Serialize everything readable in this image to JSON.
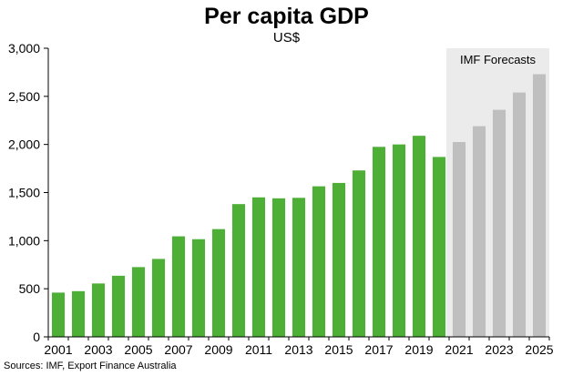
{
  "chart_data": {
    "type": "bar",
    "title": "Per capita GDP",
    "subtitle": "US$",
    "source": "Sources: IMF, Export Finance Australia",
    "forecast_label": "IMF Forecasts",
    "forecast_start": "2021",
    "categories": [
      "2001",
      "2002",
      "2003",
      "2004",
      "2005",
      "2006",
      "2007",
      "2008",
      "2009",
      "2010",
      "2011",
      "2012",
      "2013",
      "2014",
      "2015",
      "2016",
      "2017",
      "2018",
      "2019",
      "2020",
      "2021",
      "2022",
      "2023",
      "2024",
      "2025"
    ],
    "values": [
      460,
      475,
      555,
      635,
      725,
      810,
      1045,
      1015,
      1120,
      1380,
      1450,
      1440,
      1445,
      1565,
      1600,
      1730,
      1975,
      2000,
      2090,
      1870,
      2025,
      2190,
      2360,
      2540,
      2730
    ],
    "x_tick_labels": [
      "2001",
      "2003",
      "2005",
      "2007",
      "2009",
      "2011",
      "2013",
      "2015",
      "2017",
      "2019",
      "2021",
      "2023",
      "2025"
    ],
    "y_tick_labels": [
      "0",
      "500",
      "1,000",
      "1,500",
      "2,000",
      "2,500",
      "3,000"
    ],
    "y_ticks": [
      0,
      500,
      1000,
      1500,
      2000,
      2500,
      3000
    ],
    "ylim": [
      0,
      3000
    ],
    "xlabel": "",
    "ylabel": "",
    "grid": false,
    "colors": {
      "actual": "#4daf35",
      "forecast": "#bfbfbf",
      "forecast_band": "#ebebeb",
      "axis": "#000000"
    }
  }
}
